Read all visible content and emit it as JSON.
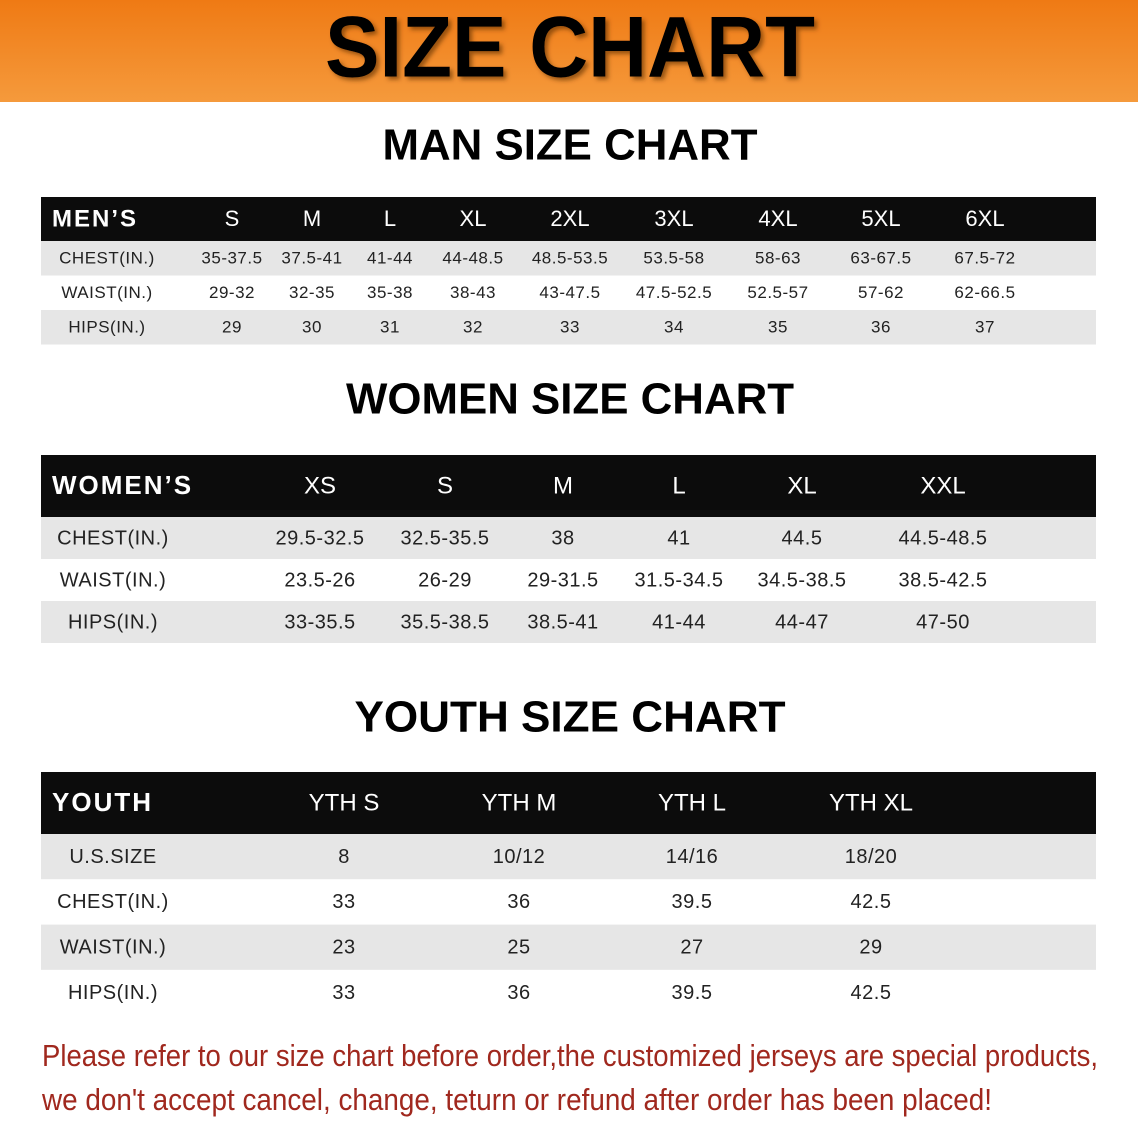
{
  "header": {
    "title": "SIZE CHART"
  },
  "sections": [
    {
      "heading": "MAN SIZE CHART",
      "table": {
        "header": [
          "MEN’S",
          "S",
          "M",
          "L",
          "XL",
          "2XL",
          "3XL",
          "4XL",
          "5XL",
          "6XL"
        ],
        "rows": [
          [
            "CHEST(IN.)",
            "35-37.5",
            "37.5-41",
            "41-44",
            "44-48.5",
            "48.5-53.5",
            "53.5-58",
            "58-63",
            "63-67.5",
            "67.5-72"
          ],
          [
            "WAIST(IN.)",
            "29-32",
            "32-35",
            "35-38",
            "38-43",
            "43-47.5",
            "47.5-52.5",
            "52.5-57",
            "57-62",
            "62-66.5"
          ],
          [
            "HIPS(IN.)",
            "29",
            "30",
            "31",
            "32",
            "33",
            "34",
            "35",
            "36",
            "37"
          ]
        ]
      }
    },
    {
      "heading": "WOMEN SIZE CHART",
      "table": {
        "header": [
          "WOMEN’S",
          "XS",
          "S",
          "M",
          "L",
          "XL",
          "XXL"
        ],
        "rows": [
          [
            "CHEST(IN.)",
            "29.5-32.5",
            "32.5-35.5",
            "38",
            "41",
            "44.5",
            "44.5-48.5"
          ],
          [
            "WAIST(IN.)",
            "23.5-26",
            "26-29",
            "29-31.5",
            "31.5-34.5",
            "34.5-38.5",
            "38.5-42.5"
          ],
          [
            "HIPS(IN.)",
            "33-35.5",
            "35.5-38.5",
            "38.5-41",
            "41-44",
            "44-47",
            "47-50"
          ]
        ]
      }
    },
    {
      "heading": "YOUTH SIZE CHART",
      "table": {
        "header": [
          "YOUTH",
          "YTH S",
          "YTH M",
          "YTH L",
          "YTH XL"
        ],
        "rows": [
          [
            "U.S.SIZE",
            "8",
            "10/12",
            "14/16",
            "18/20"
          ],
          [
            "CHEST(IN.)",
            "33",
            "36",
            "39.5",
            "42.5"
          ],
          [
            "WAIST(IN.)",
            "23",
            "25",
            "27",
            "29"
          ],
          [
            "HIPS(IN.)",
            "33",
            "36",
            "39.5",
            "42.5"
          ]
        ]
      }
    }
  ],
  "notice": [
    "Please refer to our size chart before order,the customized jerseys are special products,",
    "we don't accept cancel, change, teturn or refund after order has been placed!"
  ]
}
